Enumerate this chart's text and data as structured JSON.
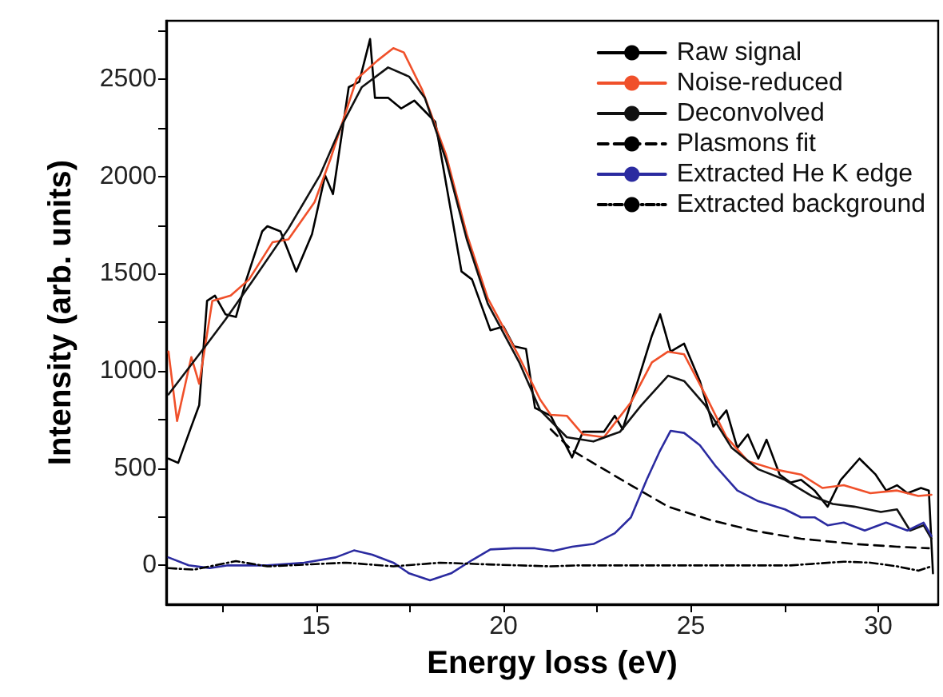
{
  "chart_data": {
    "type": "line",
    "xlabel": "Energy loss (eV)",
    "ylabel": "Intensity (arb. units)",
    "xlim": [
      11,
      31.6
    ],
    "ylim": [
      -200,
      2800
    ],
    "xticks": [
      {
        "value": 12.5,
        "label": null
      },
      15,
      {
        "value": 17.5,
        "label": null
      },
      20,
      {
        "value": 22.5,
        "label": null
      },
      25,
      {
        "value": 27.5,
        "label": null
      },
      30
    ],
    "yticks": [
      0,
      {
        "value": 250,
        "label": null
      },
      500,
      {
        "value": 750,
        "label": null
      },
      1000,
      {
        "value": 1250,
        "label": null
      },
      1500,
      {
        "value": 1750,
        "label": null
      },
      2000,
      {
        "value": 2250,
        "label": null
      },
      2500,
      {
        "value": 2750,
        "label": null
      }
    ],
    "grid": false,
    "legend": "top right",
    "marker": "none",
    "series": [
      {
        "name": "Raw signal",
        "color": "#000000",
        "line_style": "solid",
        "x": [
          11.06,
          11.32,
          11.67,
          11.88,
          12.09,
          12.3,
          12.58,
          12.86,
          13.14,
          13.56,
          13.7,
          14.05,
          14.47,
          14.89,
          15.24,
          15.45,
          15.87,
          16.15,
          16.44,
          16.57,
          16.92,
          17.27,
          17.62,
          18.18,
          18.53,
          18.88,
          19.16,
          19.65,
          20.0,
          20.28,
          20.6,
          20.84,
          21.26,
          21.83,
          22.12,
          22.68,
          22.97,
          23.18,
          23.54,
          23.96,
          24.18,
          24.46,
          24.82,
          25.24,
          25.6,
          25.95,
          26.24,
          26.52,
          26.8,
          27.02,
          27.37,
          27.66,
          27.94,
          28.3,
          28.65,
          29.0,
          29.5,
          29.93,
          30.21,
          30.5,
          30.78,
          31.14,
          31.35,
          31.46
        ],
        "values": [
          549,
          527,
          714,
          824,
          1360,
          1387,
          1291,
          1277,
          1470,
          1717,
          1744,
          1717,
          1511,
          1703,
          2005,
          1909,
          2459,
          2486,
          2706,
          2404,
          2404,
          2349,
          2390,
          2280,
          1895,
          1511,
          1470,
          1209,
          1228,
          1126,
          1113,
          810,
          769,
          555,
          687,
          687,
          769,
          700,
          920,
          1181,
          1291,
          1099,
          1140,
          948,
          714,
          797,
          604,
          673,
          549,
          646,
          467,
          426,
          440,
          385,
          302,
          440,
          549,
          467,
          385,
          412,
          371,
          398,
          385,
          -41
        ]
      },
      {
        "name": "Noise-reduced",
        "color": "#f0502a",
        "line_style": "solid",
        "x": [
          11.06,
          11.29,
          11.67,
          11.88,
          12.23,
          12.72,
          13.21,
          13.84,
          14.26,
          14.96,
          15.38,
          15.8,
          16.08,
          16.64,
          17.06,
          17.34,
          17.83,
          18.46,
          19.02,
          19.58,
          20.42,
          20.98,
          21.26,
          21.69,
          22.12,
          22.68,
          23.4,
          23.96,
          24.39,
          24.82,
          25.38,
          25.95,
          26.52,
          27.23,
          27.94,
          28.51,
          29.08,
          29.79,
          30.5,
          31.07,
          31.42
        ],
        "values": [
          1099,
          742,
          1071,
          934,
          1360,
          1387,
          1470,
          1662,
          1676,
          1868,
          2088,
          2335,
          2500,
          2596,
          2659,
          2637,
          2445,
          2115,
          1703,
          1373,
          1071,
          852,
          774,
          769,
          673,
          659,
          838,
          1044,
          1099,
          1085,
          879,
          659,
          536,
          494,
          467,
          398,
          412,
          371,
          385,
          357,
          363
        ]
      },
      {
        "name": "Deconvolved",
        "color": "#111111",
        "line_style": "solid",
        "x": [
          11.06,
          11.88,
          12.58,
          13.28,
          14.26,
          15.1,
          15.66,
          16.22,
          16.92,
          17.48,
          17.9,
          18.46,
          19.02,
          19.58,
          20.42,
          20.98,
          21.69,
          22.4,
          23.11,
          23.68,
          24.39,
          24.82,
          25.38,
          26.09,
          26.8,
          27.51,
          28.22,
          28.79,
          29.36,
          30.07,
          30.5,
          30.85,
          31.21,
          31.42
        ],
        "values": [
          879,
          1085,
          1264,
          1456,
          1731,
          2005,
          2253,
          2459,
          2560,
          2513,
          2404,
          2088,
          1676,
          1346,
          1044,
          797,
          659,
          637,
          687,
          824,
          975,
          948,
          824,
          604,
          494,
          440,
          357,
          316,
          302,
          275,
          288,
          179,
          206,
          137
        ]
      },
      {
        "name": "Plasmons fit",
        "color": "#000000",
        "line_style": "dashed",
        "x": [
          21.26,
          21.83,
          22.68,
          23.4,
          24.39,
          25.53,
          26.66,
          27.94,
          29.36,
          30.5,
          31.35
        ],
        "values": [
          700,
          591,
          494,
          412,
          302,
          233,
          179,
          137,
          110,
          96,
          88
        ]
      },
      {
        "name": "Extracted He K edge",
        "color": "#2b2ba0",
        "line_style": "solid",
        "x": [
          11.06,
          11.6,
          12.16,
          12.65,
          13.7,
          14.68,
          15.52,
          16.01,
          16.5,
          17.06,
          17.48,
          18.04,
          18.6,
          19.16,
          19.65,
          20.28,
          20.84,
          21.33,
          21.83,
          22.4,
          22.97,
          23.4,
          23.82,
          24.18,
          24.46,
          24.82,
          25.24,
          25.67,
          26.24,
          26.8,
          27.51,
          27.94,
          28.3,
          28.65,
          29.08,
          29.64,
          30.21,
          30.78,
          31.21,
          31.42
        ],
        "values": [
          41,
          0,
          -14,
          0,
          0,
          14,
          41,
          77,
          55,
          14,
          -41,
          -77,
          -41,
          27,
          82,
          88,
          88,
          74,
          96,
          110,
          165,
          247,
          440,
          591,
          692,
          681,
          618,
          508,
          385,
          330,
          288,
          247,
          247,
          206,
          220,
          179,
          220,
          179,
          220,
          151
        ]
      },
      {
        "name": "Extracted background",
        "color": "#000000",
        "line_style": "dashdot",
        "x": [
          11.06,
          11.74,
          12.86,
          13.7,
          14.82,
          15.8,
          17.06,
          18.32,
          19.58,
          21.26,
          21.97,
          24.82,
          27.66,
          29.08,
          29.79,
          30.5,
          31.07,
          31.42
        ],
        "values": [
          -14,
          -22,
          22,
          -5,
          5,
          14,
          -5,
          14,
          5,
          -5,
          0,
          0,
          0,
          19,
          14,
          -5,
          -27,
          -5
        ]
      }
    ]
  }
}
